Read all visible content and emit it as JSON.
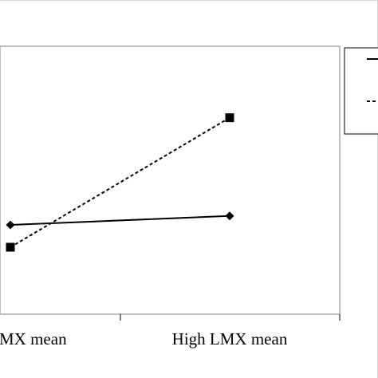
{
  "chart_data": {
    "type": "line",
    "categories": [
      "Low LMX mean",
      "High LMX mean"
    ],
    "series": [
      {
        "values": [
          2.0,
          2.2
        ],
        "marker": "diamond",
        "line_style": "solid"
      },
      {
        "values": [
          1.5,
          4.4
        ],
        "marker": "square",
        "line_style": "dashed"
      }
    ],
    "ylim": [
      0,
      6
    ],
    "grid": false,
    "legend": "top-right",
    "colors": {
      "line": "#000000",
      "frame": "#c8c8c8",
      "background": "#ffffff"
    }
  }
}
